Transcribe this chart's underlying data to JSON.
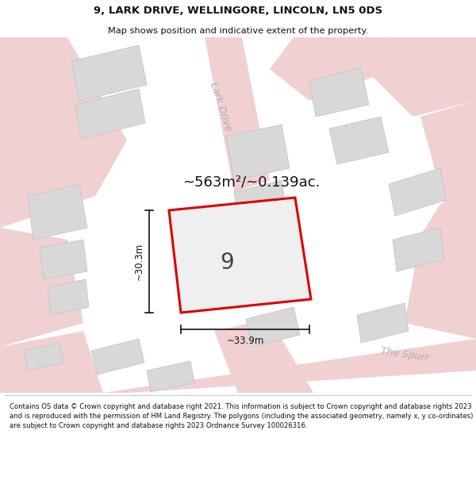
{
  "title": "9, LARK DRIVE, WELLINGORE, LINCOLN, LN5 0DS",
  "subtitle": "Map shows position and indicative extent of the property.",
  "area_label": "~563m²/~0.139ac.",
  "plot_number": "9",
  "dim_width": "~33.9m",
  "dim_height": "~30.3m",
  "street_label_1": "Lark Drive",
  "street_label_2": "The Spurr",
  "footer": "Contains OS data © Crown copyright and database right 2021. This information is subject to Crown copyright and database rights 2023 and is reproduced with the permission of HM Land Registry. The polygons (including the associated geometry, namely x, y co-ordinates) are subject to Crown copyright and database rights 2023 Ordnance Survey 100026316.",
  "bg_color": "#f7f7f7",
  "building_fill": "#d8d8d8",
  "road_color": "#f0d0d0",
  "plot_fill": "#e8e8e8",
  "plot_edge": "#dd0000",
  "title_color": "#111111"
}
